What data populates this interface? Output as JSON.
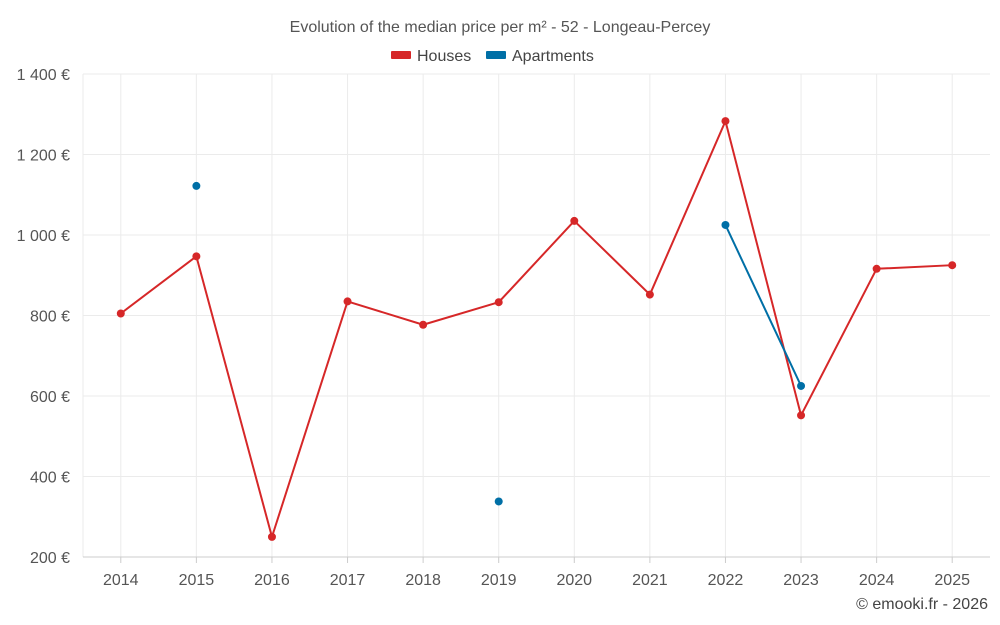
{
  "chart_data": {
    "type": "line",
    "title": "Evolution of the median price per m² - 52 - Longeau-Percey",
    "categories": [
      "2014",
      "2015",
      "2016",
      "2017",
      "2018",
      "2019",
      "2020",
      "2021",
      "2022",
      "2023",
      "2024",
      "2025"
    ],
    "ylim": [
      200,
      1400
    ],
    "y_ticks": [
      200,
      400,
      600,
      800,
      1000,
      1200,
      1400
    ],
    "y_tick_labels": [
      "200 €",
      "400 €",
      "600 €",
      "800 €",
      "1 000 €",
      "1 200 €",
      "1 400 €"
    ],
    "grid": true,
    "legend_position": "top-center",
    "series": [
      {
        "name": "Houses",
        "color": "#d62728",
        "values": [
          805,
          947,
          250,
          835,
          777,
          833,
          1035,
          852,
          1283,
          552,
          916,
          925
        ]
      },
      {
        "name": "Apartments",
        "color": "#006fa6",
        "values": [
          null,
          1122,
          null,
          null,
          null,
          338,
          null,
          null,
          1025,
          625,
          null,
          null
        ]
      }
    ]
  },
  "credit": "© emooki.fr - 2026"
}
